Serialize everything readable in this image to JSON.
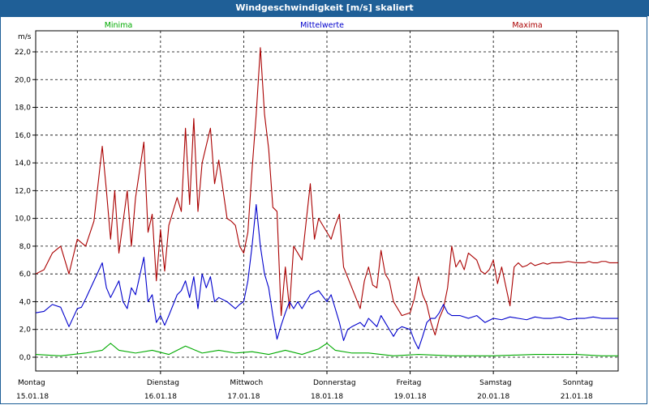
{
  "window": {
    "title": "Windgeschwindigkeit [m/s] skaliert"
  },
  "legend": [
    {
      "label": "Minima",
      "color": "#00aa00"
    },
    {
      "label": "Mittelwerte",
      "color": "#0000cc"
    },
    {
      "label": "Maxima",
      "color": "#aa0000"
    }
  ],
  "chart_data": {
    "type": "line",
    "ylabel": "m/s",
    "ylim": [
      0,
      23
    ],
    "xlim": [
      0,
      7
    ],
    "grid": true,
    "legend_position": "top",
    "yticks": [
      0,
      2,
      4,
      6,
      8,
      10,
      12,
      14,
      16,
      18,
      20,
      22
    ],
    "ytick_labels": [
      "0,0",
      "2,0",
      "4,0",
      "6,0",
      "8,0",
      "10,0",
      "12,0",
      "14,0",
      "16,0",
      "18,0",
      "20,0",
      "22,0"
    ],
    "day_labels": [
      {
        "day": "Montag",
        "date": "15.01.18"
      },
      {
        "day": "Dienstag",
        "date": "16.01.18"
      },
      {
        "day": "Mittwoch",
        "date": "17.01.18"
      },
      {
        "day": "Donnerstag",
        "date": "18.01.18"
      },
      {
        "day": "Freitag",
        "date": "19.01.18"
      },
      {
        "day": "Samstag",
        "date": "20.01.18"
      },
      {
        "day": "Sonntag",
        "date": "21.01.18"
      }
    ],
    "series": [
      {
        "name": "Maxima",
        "color": "#aa0000",
        "x": [
          0,
          0.1,
          0.2,
          0.3,
          0.4,
          0.5,
          0.6,
          0.7,
          0.8,
          0.85,
          0.9,
          0.95,
          1.0,
          1.1,
          1.15,
          1.2,
          1.3,
          1.35,
          1.4,
          1.45,
          1.5,
          1.55,
          1.6,
          1.7,
          1.75,
          1.8,
          1.85,
          1.9,
          1.95,
          2.0,
          2.1,
          2.15,
          2.2,
          2.3,
          2.35,
          2.4,
          2.45,
          2.5,
          2.55,
          2.6,
          2.65,
          2.7,
          2.75,
          2.8,
          2.85,
          2.9,
          2.95,
          3.0,
          3.05,
          3.1,
          3.2,
          3.3,
          3.35,
          3.4,
          3.5,
          3.55,
          3.6,
          3.65,
          3.7,
          3.8,
          3.9,
          3.95,
          4.0,
          4.05,
          4.1,
          4.15,
          4.2,
          4.25,
          4.3,
          4.35,
          4.4,
          4.5,
          4.55,
          4.6,
          4.65,
          4.7,
          4.75,
          4.8,
          4.85,
          4.9,
          4.95,
          5.0,
          5.05,
          5.1,
          5.15,
          5.2,
          5.3,
          5.35,
          5.4,
          5.45,
          5.5,
          5.55,
          5.6,
          5.7,
          5.75,
          5.8,
          5.85,
          5.9,
          5.95,
          6.0,
          6.05,
          6.1,
          6.15,
          6.2,
          6.3,
          6.4,
          6.5,
          6.6,
          6.65,
          6.7,
          6.75,
          6.8,
          6.85,
          6.9,
          6.95,
          7.0
        ],
        "values": [
          6.0,
          6.3,
          7.5,
          8.0,
          6.0,
          8.5,
          8.0,
          9.8,
          15.2,
          12.0,
          8.5,
          12.0,
          7.5,
          12.0,
          8.0,
          11.5,
          15.5,
          9.0,
          10.3,
          5.5,
          9.2,
          6.2,
          9.5,
          11.5,
          10.5,
          16.5,
          11.0,
          17.2,
          10.5,
          14.0,
          16.5,
          12.5,
          14.2,
          10.0,
          9.8,
          9.5,
          8.0,
          7.5,
          9.0,
          13.5,
          17.5,
          22.3,
          17.5,
          15.0,
          10.8,
          10.5,
          3.0,
          6.5,
          3.5,
          8.0,
          7.0,
          12.5,
          8.5,
          10.0,
          9.0,
          8.5,
          9.5,
          10.3,
          6.5,
          5.0,
          3.5,
          5.5,
          6.5,
          5.2,
          5.0,
          7.7,
          6.0,
          5.5,
          4.0,
          3.5,
          3.0,
          3.2,
          4.2,
          5.8,
          4.5,
          3.8,
          2.5,
          1.6,
          2.8,
          3.5,
          5.0,
          8.0,
          6.5,
          7.0,
          6.3,
          7.5,
          7.0,
          6.2,
          6.0,
          6.3,
          7.0,
          5.3,
          6.5,
          3.7,
          6.5,
          6.8,
          6.5,
          6.6,
          6.8,
          6.6,
          6.7,
          6.8,
          6.7,
          6.8,
          6.8,
          6.9,
          6.8,
          6.8,
          6.9,
          6.8,
          6.8,
          6.9,
          6.9,
          6.8,
          6.8,
          6.8
        ]
      },
      {
        "name": "Mittelwerte",
        "color": "#0000cc",
        "x": [
          0,
          0.1,
          0.2,
          0.3,
          0.4,
          0.5,
          0.55,
          0.6,
          0.7,
          0.8,
          0.85,
          0.9,
          1.0,
          1.05,
          1.1,
          1.15,
          1.2,
          1.3,
          1.35,
          1.4,
          1.45,
          1.5,
          1.55,
          1.6,
          1.7,
          1.75,
          1.8,
          1.85,
          1.9,
          1.95,
          2.0,
          2.05,
          2.1,
          2.15,
          2.2,
          2.3,
          2.4,
          2.45,
          2.5,
          2.55,
          2.6,
          2.65,
          2.7,
          2.75,
          2.8,
          2.85,
          2.9,
          2.95,
          3.0,
          3.05,
          3.1,
          3.15,
          3.2,
          3.3,
          3.4,
          3.5,
          3.55,
          3.6,
          3.65,
          3.7,
          3.75,
          3.8,
          3.9,
          3.95,
          4.0,
          4.05,
          4.1,
          4.15,
          4.2,
          4.25,
          4.3,
          4.35,
          4.4,
          4.5,
          4.55,
          4.6,
          4.65,
          4.7,
          4.75,
          4.8,
          4.85,
          4.9,
          4.95,
          5.0,
          5.1,
          5.2,
          5.3,
          5.4,
          5.5,
          5.6,
          5.7,
          5.8,
          5.9,
          6.0,
          6.1,
          6.2,
          6.3,
          6.4,
          6.5,
          6.6,
          6.7,
          6.8,
          6.9,
          7.0
        ],
        "values": [
          3.2,
          3.3,
          3.8,
          3.6,
          2.2,
          3.5,
          3.6,
          4.2,
          5.5,
          6.8,
          5.0,
          4.3,
          5.5,
          4.0,
          3.5,
          5.0,
          4.5,
          7.2,
          4.0,
          4.5,
          2.5,
          3.0,
          2.3,
          3.0,
          4.5,
          4.8,
          5.5,
          4.3,
          5.8,
          3.5,
          6.0,
          5.0,
          5.8,
          4.0,
          4.3,
          4.0,
          3.5,
          3.8,
          4.0,
          5.5,
          8.0,
          11.0,
          8.0,
          6.0,
          5.0,
          3.0,
          1.3,
          2.3,
          3.2,
          4.0,
          3.5,
          4.0,
          3.5,
          4.5,
          4.8,
          4.0,
          4.5,
          3.5,
          2.5,
          1.2,
          2.0,
          2.2,
          2.5,
          2.2,
          2.8,
          2.5,
          2.2,
          3.0,
          2.5,
          2.0,
          1.5,
          2.0,
          2.2,
          2.0,
          1.2,
          0.6,
          1.5,
          2.5,
          2.8,
          2.8,
          3.2,
          3.8,
          3.2,
          3.0,
          3.0,
          2.8,
          3.0,
          2.5,
          2.8,
          2.7,
          2.9,
          2.8,
          2.7,
          2.9,
          2.8,
          2.8,
          2.9,
          2.7,
          2.8,
          2.8,
          2.9,
          2.8,
          2.8,
          2.8
        ]
      },
      {
        "name": "Minima",
        "color": "#00aa00",
        "x": [
          0,
          0.3,
          0.6,
          0.8,
          0.9,
          1.0,
          1.2,
          1.4,
          1.6,
          1.8,
          2.0,
          2.2,
          2.4,
          2.6,
          2.8,
          3.0,
          3.2,
          3.4,
          3.5,
          3.6,
          3.8,
          4.0,
          4.3,
          4.6,
          5.0,
          5.5,
          6.0,
          6.5,
          6.8,
          7.0
        ],
        "values": [
          0.2,
          0.1,
          0.3,
          0.5,
          1.0,
          0.5,
          0.3,
          0.5,
          0.2,
          0.8,
          0.3,
          0.5,
          0.3,
          0.4,
          0.2,
          0.5,
          0.2,
          0.6,
          1.0,
          0.5,
          0.3,
          0.3,
          0.1,
          0.2,
          0.1,
          0.1,
          0.2,
          0.2,
          0.1,
          0.1
        ]
      }
    ]
  }
}
